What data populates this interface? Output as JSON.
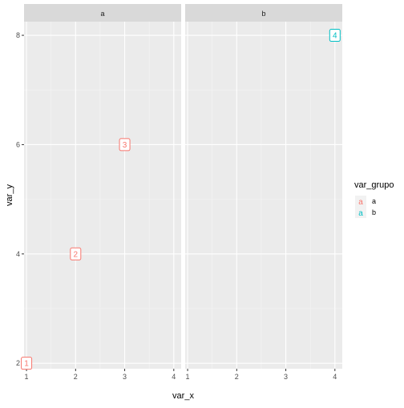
{
  "chart_data": {
    "type": "scatter",
    "facet_variable": "var_grupo",
    "facets": [
      "a",
      "b"
    ],
    "xlabel": "var_x",
    "ylabel": "var_y",
    "xlim": [
      0.95,
      4.15
    ],
    "ylim": [
      1.9,
      8.25
    ],
    "x_ticks": [
      1,
      2,
      3,
      4
    ],
    "y_ticks": [
      2,
      4,
      6,
      8
    ],
    "x_tick_labels": [
      "1",
      "2",
      "3",
      "4"
    ],
    "y_tick_labels": [
      "2",
      "4",
      "6",
      "8"
    ],
    "grid": true,
    "legend": {
      "title": "var_grupo",
      "position": "right",
      "key_glyph": "a",
      "entries": [
        {
          "label": "a",
          "color": "#F8766D"
        },
        {
          "label": "b",
          "color": "#00BFC4"
        }
      ]
    },
    "points": [
      {
        "x": 1,
        "y": 2,
        "label": "1",
        "group": "a"
      },
      {
        "x": 2,
        "y": 4,
        "label": "2",
        "group": "a"
      },
      {
        "x": 3,
        "y": 6,
        "label": "3",
        "group": "a"
      },
      {
        "x": 4,
        "y": 8,
        "label": "4",
        "group": "b"
      }
    ]
  }
}
